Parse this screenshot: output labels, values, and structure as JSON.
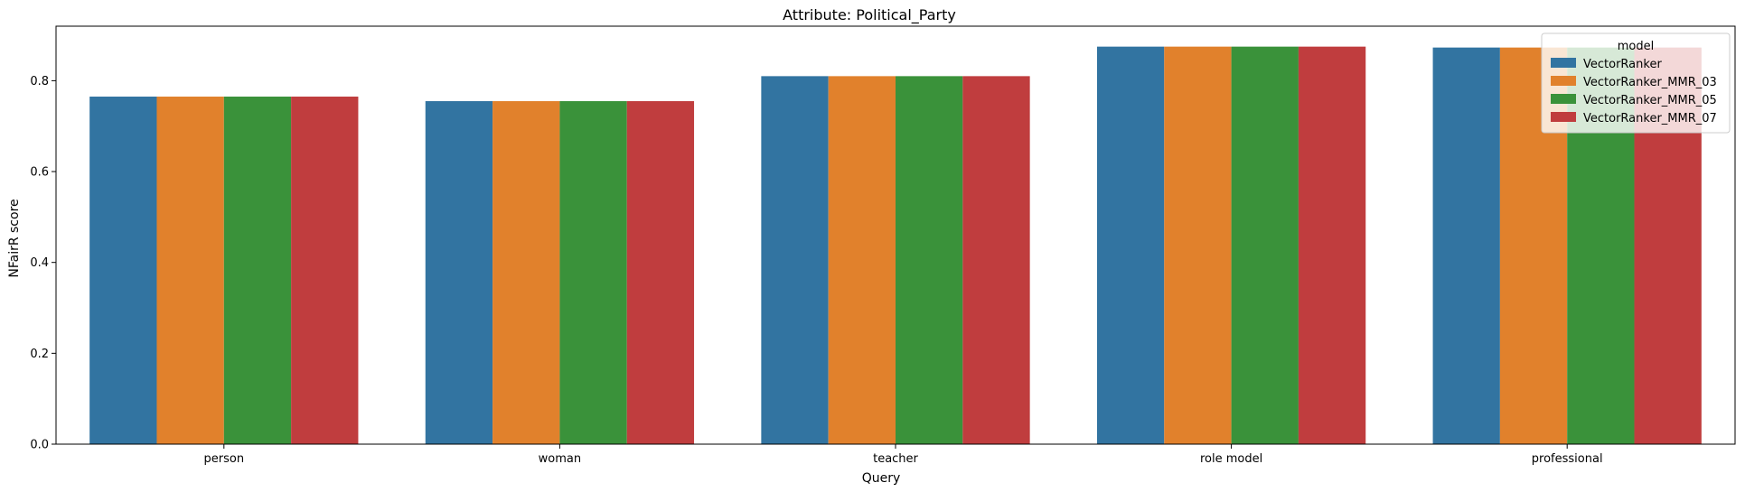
{
  "chart_data": {
    "type": "bar",
    "title": "Attribute: Political_Party",
    "xlabel": "Query",
    "ylabel": "NFairR score",
    "categories": [
      "person",
      "woman",
      "teacher",
      "role model",
      "professional"
    ],
    "series": [
      {
        "name": "VectorRanker",
        "color": "#3274a1",
        "values": [
          0.765,
          0.755,
          0.81,
          0.875,
          0.873
        ]
      },
      {
        "name": "VectorRanker_MMR_03",
        "color": "#e1812c",
        "values": [
          0.765,
          0.755,
          0.81,
          0.875,
          0.873
        ]
      },
      {
        "name": "VectorRanker_MMR_05",
        "color": "#3a923a",
        "values": [
          0.765,
          0.755,
          0.81,
          0.875,
          0.873
        ]
      },
      {
        "name": "VectorRanker_MMR_07",
        "color": "#c03d3e",
        "values": [
          0.765,
          0.755,
          0.81,
          0.875,
          0.873
        ]
      }
    ],
    "ylim": [
      0,
      0.92
    ],
    "yticks": [
      "0.0",
      "0.2",
      "0.4",
      "0.6",
      "0.8"
    ],
    "legend_title": "model",
    "legend_placement": "top-right",
    "grid": false
  }
}
